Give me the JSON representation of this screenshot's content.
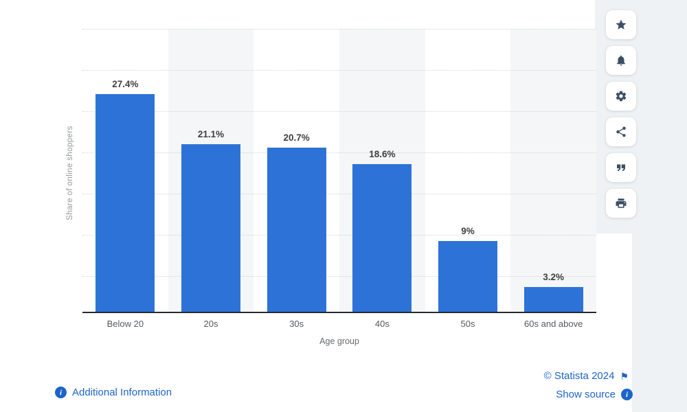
{
  "chart_data": {
    "type": "bar",
    "title": "",
    "categories": [
      "Below 20",
      "20s",
      "30s",
      "40s",
      "50s",
      "60s and above"
    ],
    "values": [
      27.4,
      21.1,
      20.7,
      18.6,
      9,
      3.2
    ],
    "value_labels": [
      "27.4%",
      "21.1%",
      "20.7%",
      "18.6%",
      "9%",
      "3.2%"
    ],
    "xlabel": "Age group",
    "ylabel": "Share of online shoppers",
    "ylim": [
      0,
      30
    ],
    "grid": "horizontal dotted gridlines, alternating light column bands",
    "legend": "none",
    "bar_color": "#2d73d7"
  },
  "toolbar": {
    "buttons": [
      {
        "icon": "star-icon"
      },
      {
        "icon": "bell-icon"
      },
      {
        "icon": "gear-icon"
      },
      {
        "icon": "share-icon"
      },
      {
        "icon": "quote-icon"
      },
      {
        "icon": "print-icon"
      }
    ]
  },
  "footer": {
    "additional_info_label": "Additional Information",
    "copyright_label": "© Statista 2024",
    "show_source_label": "Show source"
  },
  "colors": {
    "bar": "#2d73d7",
    "link": "#1d64c9",
    "icon": "#3a4f66",
    "panel_bg": "#eff2f5"
  }
}
